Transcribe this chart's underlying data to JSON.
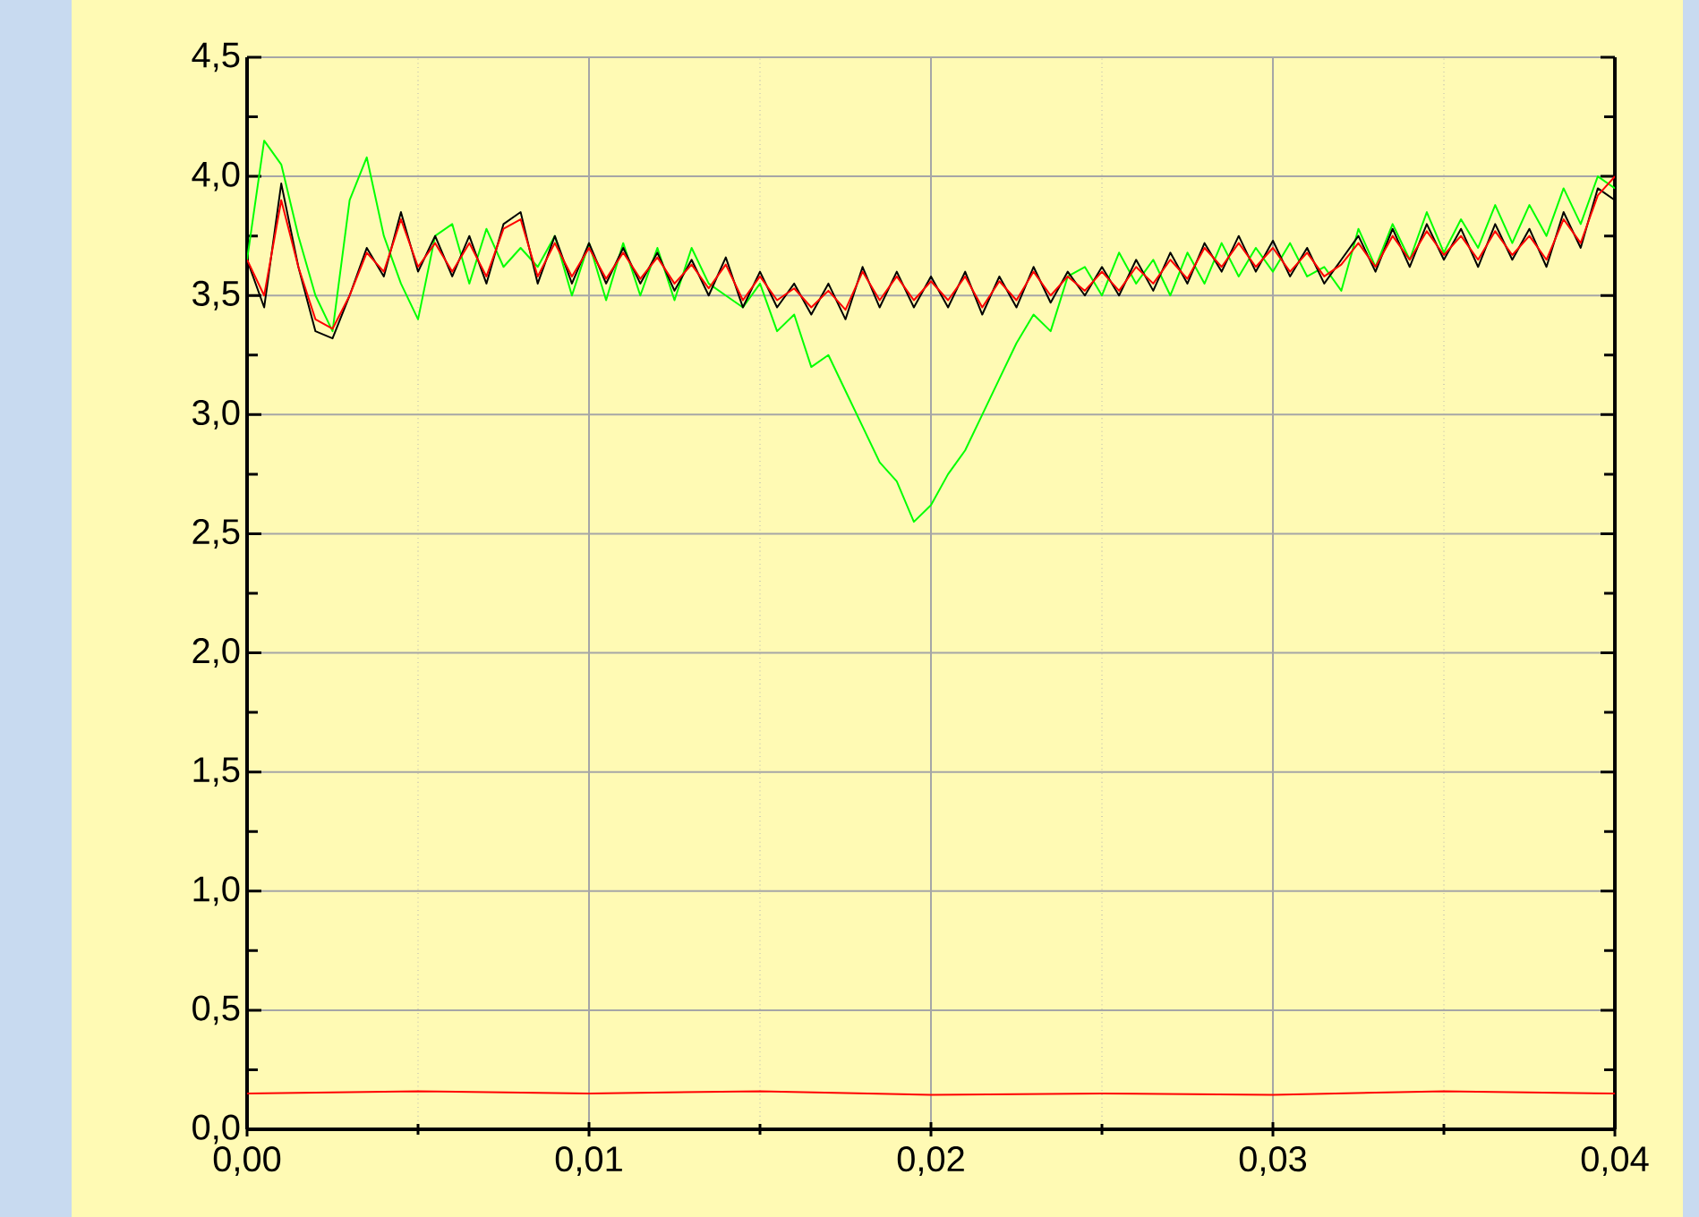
{
  "chart_data": {
    "type": "line",
    "xlim": [
      0,
      0.04
    ],
    "ylim": [
      0,
      4.5
    ],
    "xticks": [
      {
        "value": 0,
        "label": "0,00"
      },
      {
        "value": 0.005,
        "label": null
      },
      {
        "value": 0.01,
        "label": "0,01"
      },
      {
        "value": 0.015,
        "label": null
      },
      {
        "value": 0.02,
        "label": "0,02"
      },
      {
        "value": 0.025,
        "label": null
      },
      {
        "value": 0.03,
        "label": "0,03"
      },
      {
        "value": 0.035,
        "label": null
      },
      {
        "value": 0.04,
        "label": "0,04"
      }
    ],
    "yticks": [
      {
        "value": 0,
        "label": "0,0"
      },
      {
        "value": 0.25,
        "label": null
      },
      {
        "value": 0.5,
        "label": "0,5"
      },
      {
        "value": 0.75,
        "label": null
      },
      {
        "value": 1,
        "label": "1,0"
      },
      {
        "value": 1.25,
        "label": null
      },
      {
        "value": 1.5,
        "label": "1,5"
      },
      {
        "value": 1.75,
        "label": null
      },
      {
        "value": 2,
        "label": "2,0"
      },
      {
        "value": 2.25,
        "label": null
      },
      {
        "value": 2.5,
        "label": "2,5"
      },
      {
        "value": 2.75,
        "label": null
      },
      {
        "value": 3,
        "label": "3,0"
      },
      {
        "value": 3.25,
        "label": null
      },
      {
        "value": 3.5,
        "label": "3,5"
      },
      {
        "value": 3.75,
        "label": null
      },
      {
        "value": 4,
        "label": "4,0"
      },
      {
        "value": 4.25,
        "label": null
      },
      {
        "value": 4.5,
        "label": "4,5"
      }
    ],
    "grid": true,
    "x": [
      0,
      0.0005,
      0.001,
      0.0015,
      0.002,
      0.0025,
      0.003,
      0.0035,
      0.004,
      0.0045,
      0.005,
      0.0055,
      0.006,
      0.0065,
      0.007,
      0.0075,
      0.008,
      0.0085,
      0.009,
      0.0095,
      0.01,
      0.0105,
      0.011,
      0.0115,
      0.012,
      0.0125,
      0.013,
      0.0135,
      0.014,
      0.0145,
      0.015,
      0.0155,
      0.016,
      0.0165,
      0.017,
      0.0175,
      0.018,
      0.0185,
      0.019,
      0.0195,
      0.02,
      0.0205,
      0.021,
      0.0215,
      0.022,
      0.0225,
      0.023,
      0.0235,
      0.024,
      0.0245,
      0.025,
      0.0255,
      0.026,
      0.0265,
      0.027,
      0.0275,
      0.028,
      0.0285,
      0.029,
      0.0295,
      0.03,
      0.0305,
      0.031,
      0.0315,
      0.032,
      0.0325,
      0.033,
      0.0335,
      0.034,
      0.0345,
      0.035,
      0.0355,
      0.036,
      0.0365,
      0.037,
      0.0375,
      0.038,
      0.0385,
      0.039,
      0.0395,
      0.04
    ],
    "series": [
      {
        "color": "#00ff00",
        "values": [
          3.65,
          4.15,
          4.05,
          3.75,
          3.5,
          3.35,
          3.9,
          4.08,
          3.75,
          3.55,
          3.4,
          3.75,
          3.8,
          3.55,
          3.78,
          3.62,
          3.7,
          3.62,
          3.75,
          3.5,
          3.72,
          3.48,
          3.72,
          3.5,
          3.7,
          3.48,
          3.7,
          3.55,
          3.5,
          3.45,
          3.55,
          3.35,
          3.42,
          3.2,
          3.25,
          3.1,
          2.95,
          2.8,
          2.72,
          2.55,
          2.62,
          2.75,
          2.85,
          3.0,
          3.15,
          3.3,
          3.42,
          3.35,
          3.58,
          3.62,
          3.5,
          3.68,
          3.55,
          3.65,
          3.5,
          3.68,
          3.55,
          3.72,
          3.58,
          3.7,
          3.6,
          3.72,
          3.58,
          3.62,
          3.52,
          3.78,
          3.62,
          3.8,
          3.65,
          3.85,
          3.68,
          3.82,
          3.7,
          3.88,
          3.72,
          3.88,
          3.75,
          3.95,
          3.8,
          4.0,
          3.95
        ]
      },
      {
        "color": "#000000",
        "values": [
          3.65,
          3.45,
          3.97,
          3.62,
          3.35,
          3.32,
          3.5,
          3.7,
          3.58,
          3.85,
          3.6,
          3.75,
          3.58,
          3.75,
          3.55,
          3.8,
          3.85,
          3.55,
          3.75,
          3.55,
          3.72,
          3.55,
          3.7,
          3.55,
          3.68,
          3.52,
          3.65,
          3.5,
          3.66,
          3.45,
          3.6,
          3.45,
          3.55,
          3.42,
          3.55,
          3.4,
          3.62,
          3.45,
          3.6,
          3.45,
          3.58,
          3.45,
          3.6,
          3.42,
          3.58,
          3.45,
          3.62,
          3.47,
          3.6,
          3.5,
          3.62,
          3.5,
          3.65,
          3.52,
          3.68,
          3.55,
          3.72,
          3.6,
          3.75,
          3.6,
          3.73,
          3.58,
          3.7,
          3.55,
          3.65,
          3.75,
          3.6,
          3.78,
          3.62,
          3.8,
          3.65,
          3.78,
          3.62,
          3.8,
          3.65,
          3.78,
          3.62,
          3.85,
          3.7,
          3.95,
          3.9
        ]
      },
      {
        "color": "#ff0000",
        "values": [
          3.65,
          3.5,
          3.9,
          3.62,
          3.4,
          3.36,
          3.5,
          3.68,
          3.6,
          3.82,
          3.62,
          3.72,
          3.6,
          3.72,
          3.58,
          3.78,
          3.82,
          3.58,
          3.72,
          3.58,
          3.7,
          3.57,
          3.68,
          3.57,
          3.66,
          3.55,
          3.63,
          3.53,
          3.63,
          3.48,
          3.58,
          3.48,
          3.53,
          3.45,
          3.52,
          3.44,
          3.6,
          3.48,
          3.58,
          3.48,
          3.56,
          3.48,
          3.58,
          3.45,
          3.56,
          3.48,
          3.6,
          3.5,
          3.58,
          3.52,
          3.6,
          3.52,
          3.62,
          3.55,
          3.65,
          3.57,
          3.7,
          3.62,
          3.72,
          3.62,
          3.7,
          3.6,
          3.68,
          3.58,
          3.63,
          3.72,
          3.62,
          3.75,
          3.65,
          3.77,
          3.67,
          3.75,
          3.65,
          3.77,
          3.67,
          3.75,
          3.65,
          3.82,
          3.72,
          3.92,
          4.0
        ]
      },
      {
        "color": "#ff0000",
        "x": [
          0,
          0.005,
          0.01,
          0.015,
          0.02,
          0.025,
          0.03,
          0.035,
          0.04
        ],
        "values": [
          0.15,
          0.16,
          0.15,
          0.16,
          0.145,
          0.15,
          0.145,
          0.16,
          0.15
        ]
      }
    ]
  }
}
